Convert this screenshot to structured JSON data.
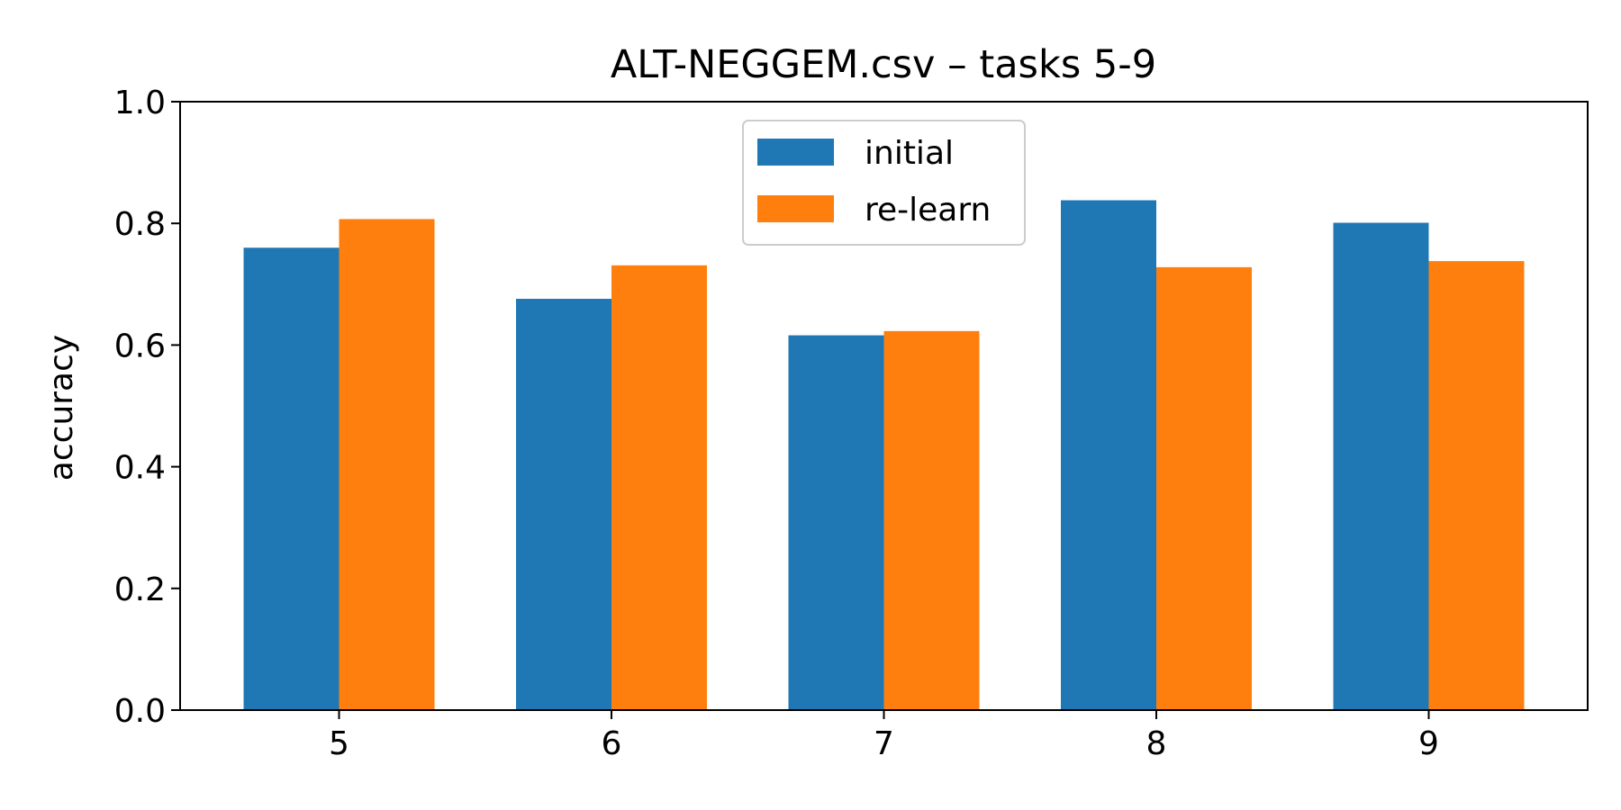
{
  "chart_data": {
    "type": "bar",
    "title": "ALT-NEGGEM.csv – tasks 5-9",
    "xlabel": "",
    "ylabel": "accuracy",
    "categories": [
      "5",
      "6",
      "7",
      "8",
      "9"
    ],
    "series": [
      {
        "name": "initial",
        "color": "#1f77b4",
        "values": [
          0.76,
          0.676,
          0.616,
          0.838,
          0.801
        ]
      },
      {
        "name": "re-learn",
        "color": "#ff7f0e",
        "values": [
          0.807,
          0.731,
          0.623,
          0.728,
          0.738
        ]
      }
    ],
    "ylim": [
      0,
      1.0
    ],
    "yticks": [
      "0.0",
      "0.2",
      "0.4",
      "0.6",
      "0.8",
      "1.0"
    ],
    "grid": false,
    "legend_position": "upper center"
  }
}
